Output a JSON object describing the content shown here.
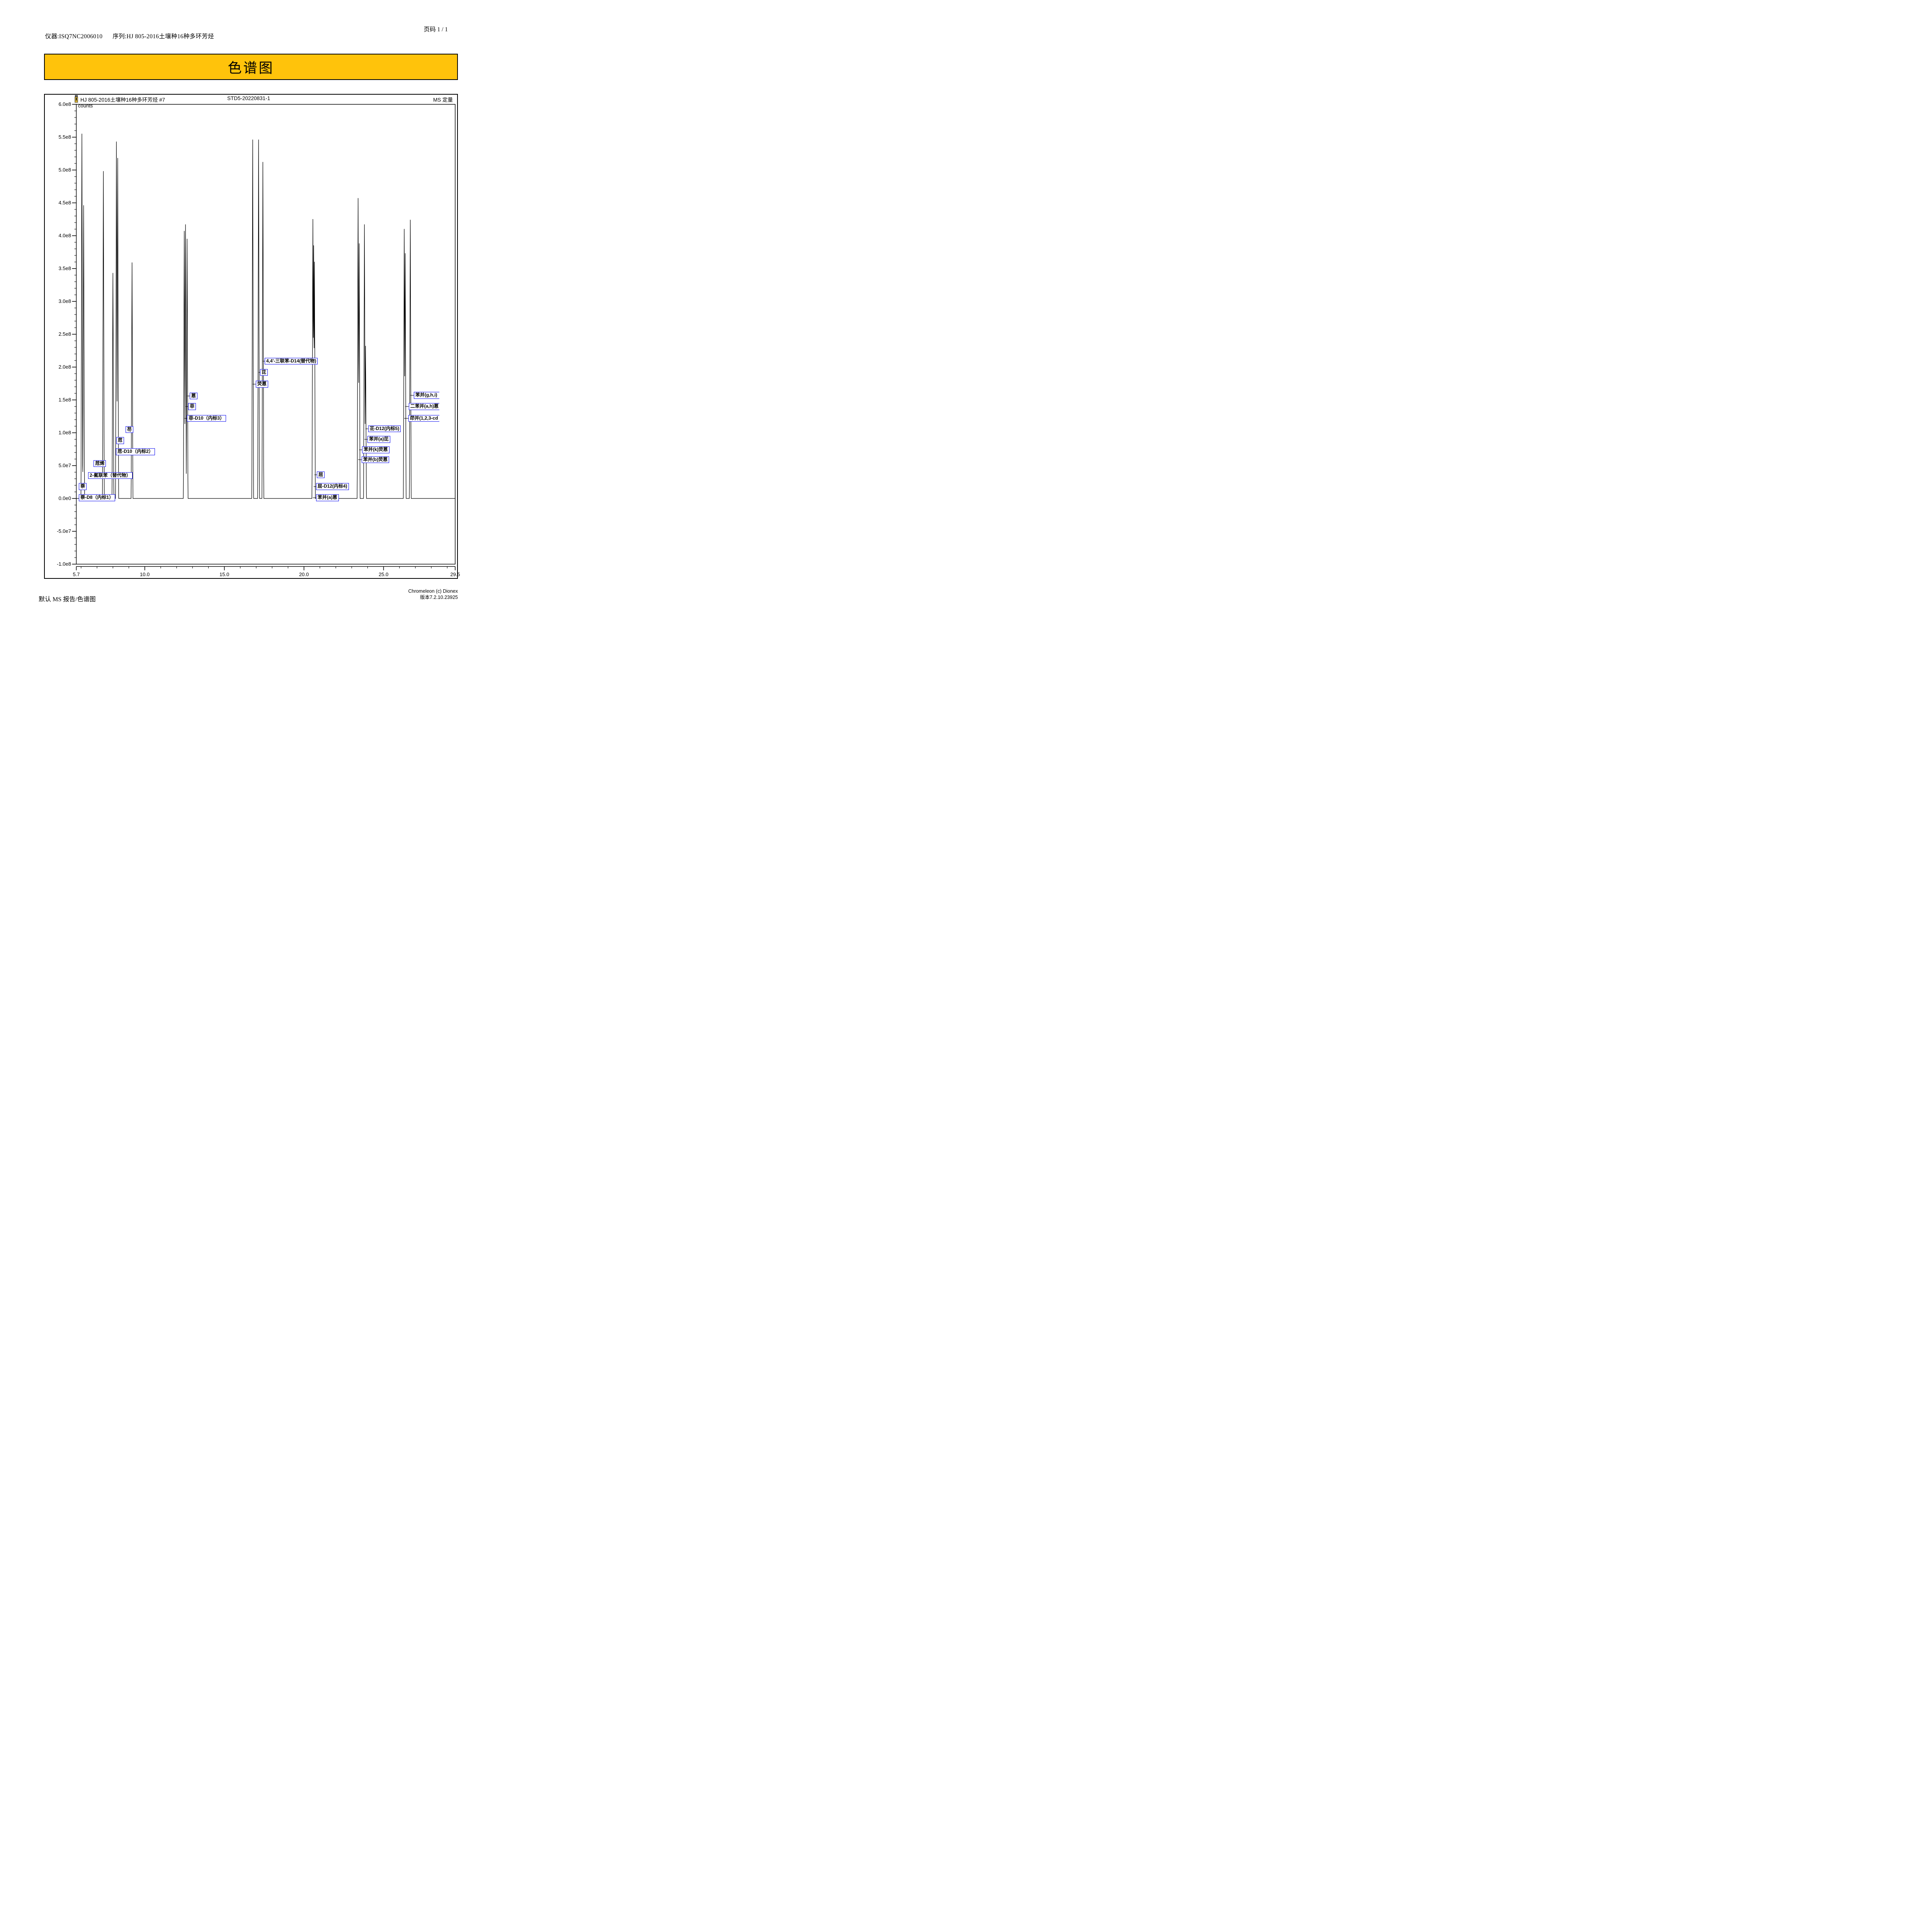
{
  "header": {
    "instrument": "仪器:ISQ7NC2006010",
    "sequence": "序列:HJ 805-2016土壤种16种多环芳烃",
    "page": "页码 1 / 1"
  },
  "banner": {
    "title": "色谱图"
  },
  "chart_header": {
    "injection_title": "HJ 805-2016土壤种16种多环芳烃 #7",
    "sample_name": "STD5-20220831-1",
    "quant_label": "MS 定量",
    "vial_icon": "vial-icon"
  },
  "footer": {
    "report_name": "默认 MS 报告/色谱图",
    "software": "Chromeleon (c) Dionex",
    "version": "版本7.2.10.23925"
  },
  "chart_data": {
    "type": "line",
    "title": "HJ 805-2016土壤种16种多环芳烃 #7",
    "subtitle": "STD5-20220831-1",
    "legend": "none",
    "grid": false,
    "ylabel": "counts",
    "xlabel": "",
    "y_axis": {
      "unit_label": "counts",
      "min": -100000000.0,
      "max": 600000000.0,
      "major_step": 50000000.0,
      "minor_step": 10000000.0,
      "tick_labels": [
        "6.0e8",
        "5.5e8",
        "5.0e8",
        "4.5e8",
        "4.0e8",
        "3.5e8",
        "3.0e8",
        "2.5e8",
        "2.0e8",
        "1.5e8",
        "1.0e8",
        "5.0e7",
        "0.0e0",
        "-5.0e7",
        "-1.0e8"
      ]
    },
    "x_axis": {
      "min": 5.7,
      "max": 29.5,
      "major_ticks": [
        5.7,
        10.0,
        15.0,
        20.0,
        25.0,
        29.5
      ],
      "tick_labels": [
        "5.7",
        "10.0",
        "15.0",
        "20.0",
        "25.0",
        "29.5"
      ],
      "minor_first": 6,
      "minor_last": 29,
      "minor_step": 1.0
    },
    "baseline_counts": 0,
    "peak_base_halfwidth_min": 0.055,
    "peaks": [
      {
        "name": "萘-D8（内标1）",
        "rt": 6.05,
        "height": 555000000.0,
        "label_x": 5.86,
        "label_y": 1000000.0
      },
      {
        "name": "萘",
        "rt": 6.16,
        "height": 446000000.0,
        "label_x": 5.86,
        "label_y": 18000000.0
      },
      {
        "name": "2-氟联苯（替代物）",
        "rt": 7.4,
        "height": 498000000.0,
        "label_x": 6.44,
        "label_y": 35000000.0
      },
      {
        "name": "苊烯",
        "rt": 8.0,
        "height": 343000000.0,
        "label_x": 6.79,
        "label_y": 53000000.0
      },
      {
        "name": "苊-D10（内标2）",
        "rt": 8.22,
        "height": 543000000.0,
        "label_x": 8.19,
        "label_y": 71000000.0
      },
      {
        "name": "苊",
        "rt": 8.3,
        "height": 518000000.0,
        "label_x": 8.21,
        "label_y": 88000000.0
      },
      {
        "name": "芴",
        "rt": 9.2,
        "height": 359000000.0,
        "label_x": 8.79,
        "label_y": 105000000.0
      },
      {
        "name": "菲-D10（内标3）",
        "rt": 12.48,
        "height": 407000000.0,
        "label_x": 12.66,
        "label_y": 122000000.0
      },
      {
        "name": "菲",
        "rt": 12.56,
        "height": 417000000.0,
        "label_x": 12.73,
        "label_y": 140000000.0
      },
      {
        "name": "蒽",
        "rt": 12.66,
        "height": 395000000.0,
        "label_x": 12.82,
        "label_y": 156000000.0
      },
      {
        "name": "荧蒽",
        "rt": 16.78,
        "height": 546000000.0,
        "label_x": 16.97,
        "label_y": 174000000.0
      },
      {
        "name": "芘",
        "rt": 17.15,
        "height": 546000000.0,
        "label_x": 17.24,
        "label_y": 192000000.0
      },
      {
        "name": "4,4'-三联苯-D14(替代物)",
        "rt": 17.42,
        "height": 512000000.0,
        "label_x": 17.53,
        "label_y": 209000000.0
      },
      {
        "name": "苯并(a)蒽",
        "rt": 20.56,
        "height": 425000000.0,
        "label_x": 20.76,
        "label_y": 1000000.0
      },
      {
        "name": "屈-D12(内标4)",
        "rt": 20.61,
        "height": 385000000.0,
        "label_x": 20.76,
        "label_y": 18000000.0
      },
      {
        "name": "屈",
        "rt": 20.66,
        "height": 360000000.0,
        "label_x": 20.81,
        "label_y": 36000000.0
      },
      {
        "name": "苯并(b)荧蒽",
        "rt": 23.4,
        "height": 457000000.0,
        "label_x": 23.62,
        "label_y": 59000000.0
      },
      {
        "name": "苯并(k)荧蒽",
        "rt": 23.47,
        "height": 388000000.0,
        "label_x": 23.65,
        "label_y": 74000000.0
      },
      {
        "name": "苯并(a)芘",
        "rt": 23.8,
        "height": 417000000.0,
        "label_x": 23.99,
        "label_y": 90000000.0
      },
      {
        "name": "苝-D12(内标5)",
        "rt": 23.87,
        "height": 232000000.0,
        "label_x": 24.03,
        "label_y": 106000000.0
      },
      {
        "name": "茚并(1,2,3-cd",
        "rt": 26.3,
        "height": 410000000.0,
        "label_x": 26.56,
        "label_y": 122000000.0,
        "clipped": true
      },
      {
        "name": "二苯并(a,h)蒽",
        "rt": 26.36,
        "height": 373000000.0,
        "label_x": 26.58,
        "label_y": 140000000.0,
        "clipped": true
      },
      {
        "name": "苯并(g,h,i)",
        "rt": 26.68,
        "height": 424000000.0,
        "label_x": 26.9,
        "label_y": 157000000.0,
        "clipped": true
      }
    ],
    "accent_colors": {
      "banner_bg": "#FFC30B",
      "label_box_border": "#0000EE",
      "trace": "#000000"
    }
  }
}
